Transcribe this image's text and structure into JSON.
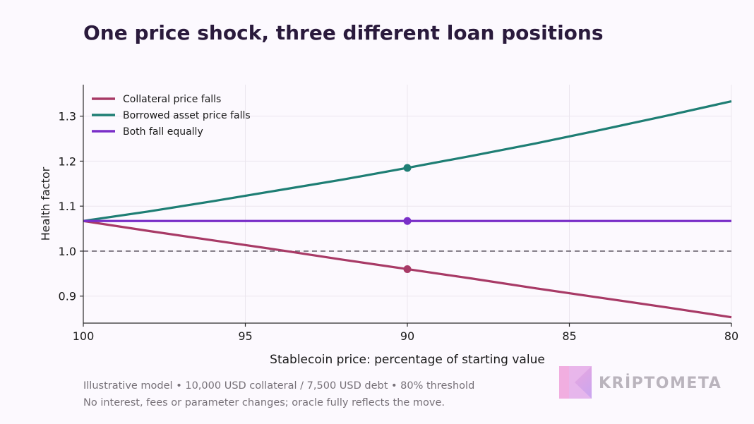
{
  "title": "One price shock, three different loan positions",
  "footnotes": [
    "Illustrative model • 10,000 USD collateral / 7,500 USD debt • 80% threshold",
    "No interest, fees or parameter changes; oracle fully reflects the move."
  ],
  "brand": {
    "name": "KRİPTOMETA",
    "icon": "kriptometa-logo-icon"
  },
  "chart_data": {
    "type": "line",
    "xlabel": "Stablecoin price: percentage of starting value",
    "ylabel": "Health factor",
    "xlim": [
      100,
      80
    ],
    "ylim": [
      0.84,
      1.37
    ],
    "x_reversed": true,
    "xticks": [
      100,
      95,
      90,
      85,
      80
    ],
    "yticks": [
      0.9,
      1.0,
      1.1,
      1.2,
      1.3
    ],
    "ytick_labels": [
      "0.9",
      "1.0",
      "1.1",
      "1.2",
      "1.3"
    ],
    "grid": true,
    "legend": "top-left",
    "reference_line": {
      "y": 1.0,
      "style": "dashed",
      "color": "#66606b"
    },
    "series": [
      {
        "name": "Collateral price falls",
        "color": "#a83a66",
        "x": [
          100,
          98,
          96,
          94,
          92,
          90,
          88,
          86,
          84,
          82,
          80
        ],
        "y": [
          1.067,
          1.045,
          1.024,
          1.003,
          0.981,
          0.96,
          0.939,
          0.917,
          0.896,
          0.875,
          0.853
        ],
        "marker": {
          "x": 90,
          "y": 0.96
        }
      },
      {
        "name": "Borrowed asset price falls",
        "color": "#1e7e74",
        "x": [
          100,
          98,
          96,
          94,
          92,
          90,
          88,
          86,
          84,
          82,
          80
        ],
        "y": [
          1.067,
          1.088,
          1.111,
          1.135,
          1.159,
          1.185,
          1.212,
          1.24,
          1.27,
          1.301,
          1.333
        ],
        "marker": {
          "x": 90,
          "y": 1.185
        }
      },
      {
        "name": "Both fall equally",
        "color": "#7a2fc8",
        "x": [
          100,
          80
        ],
        "y": [
          1.067,
          1.067
        ],
        "marker": {
          "x": 90,
          "y": 1.067
        }
      }
    ]
  }
}
